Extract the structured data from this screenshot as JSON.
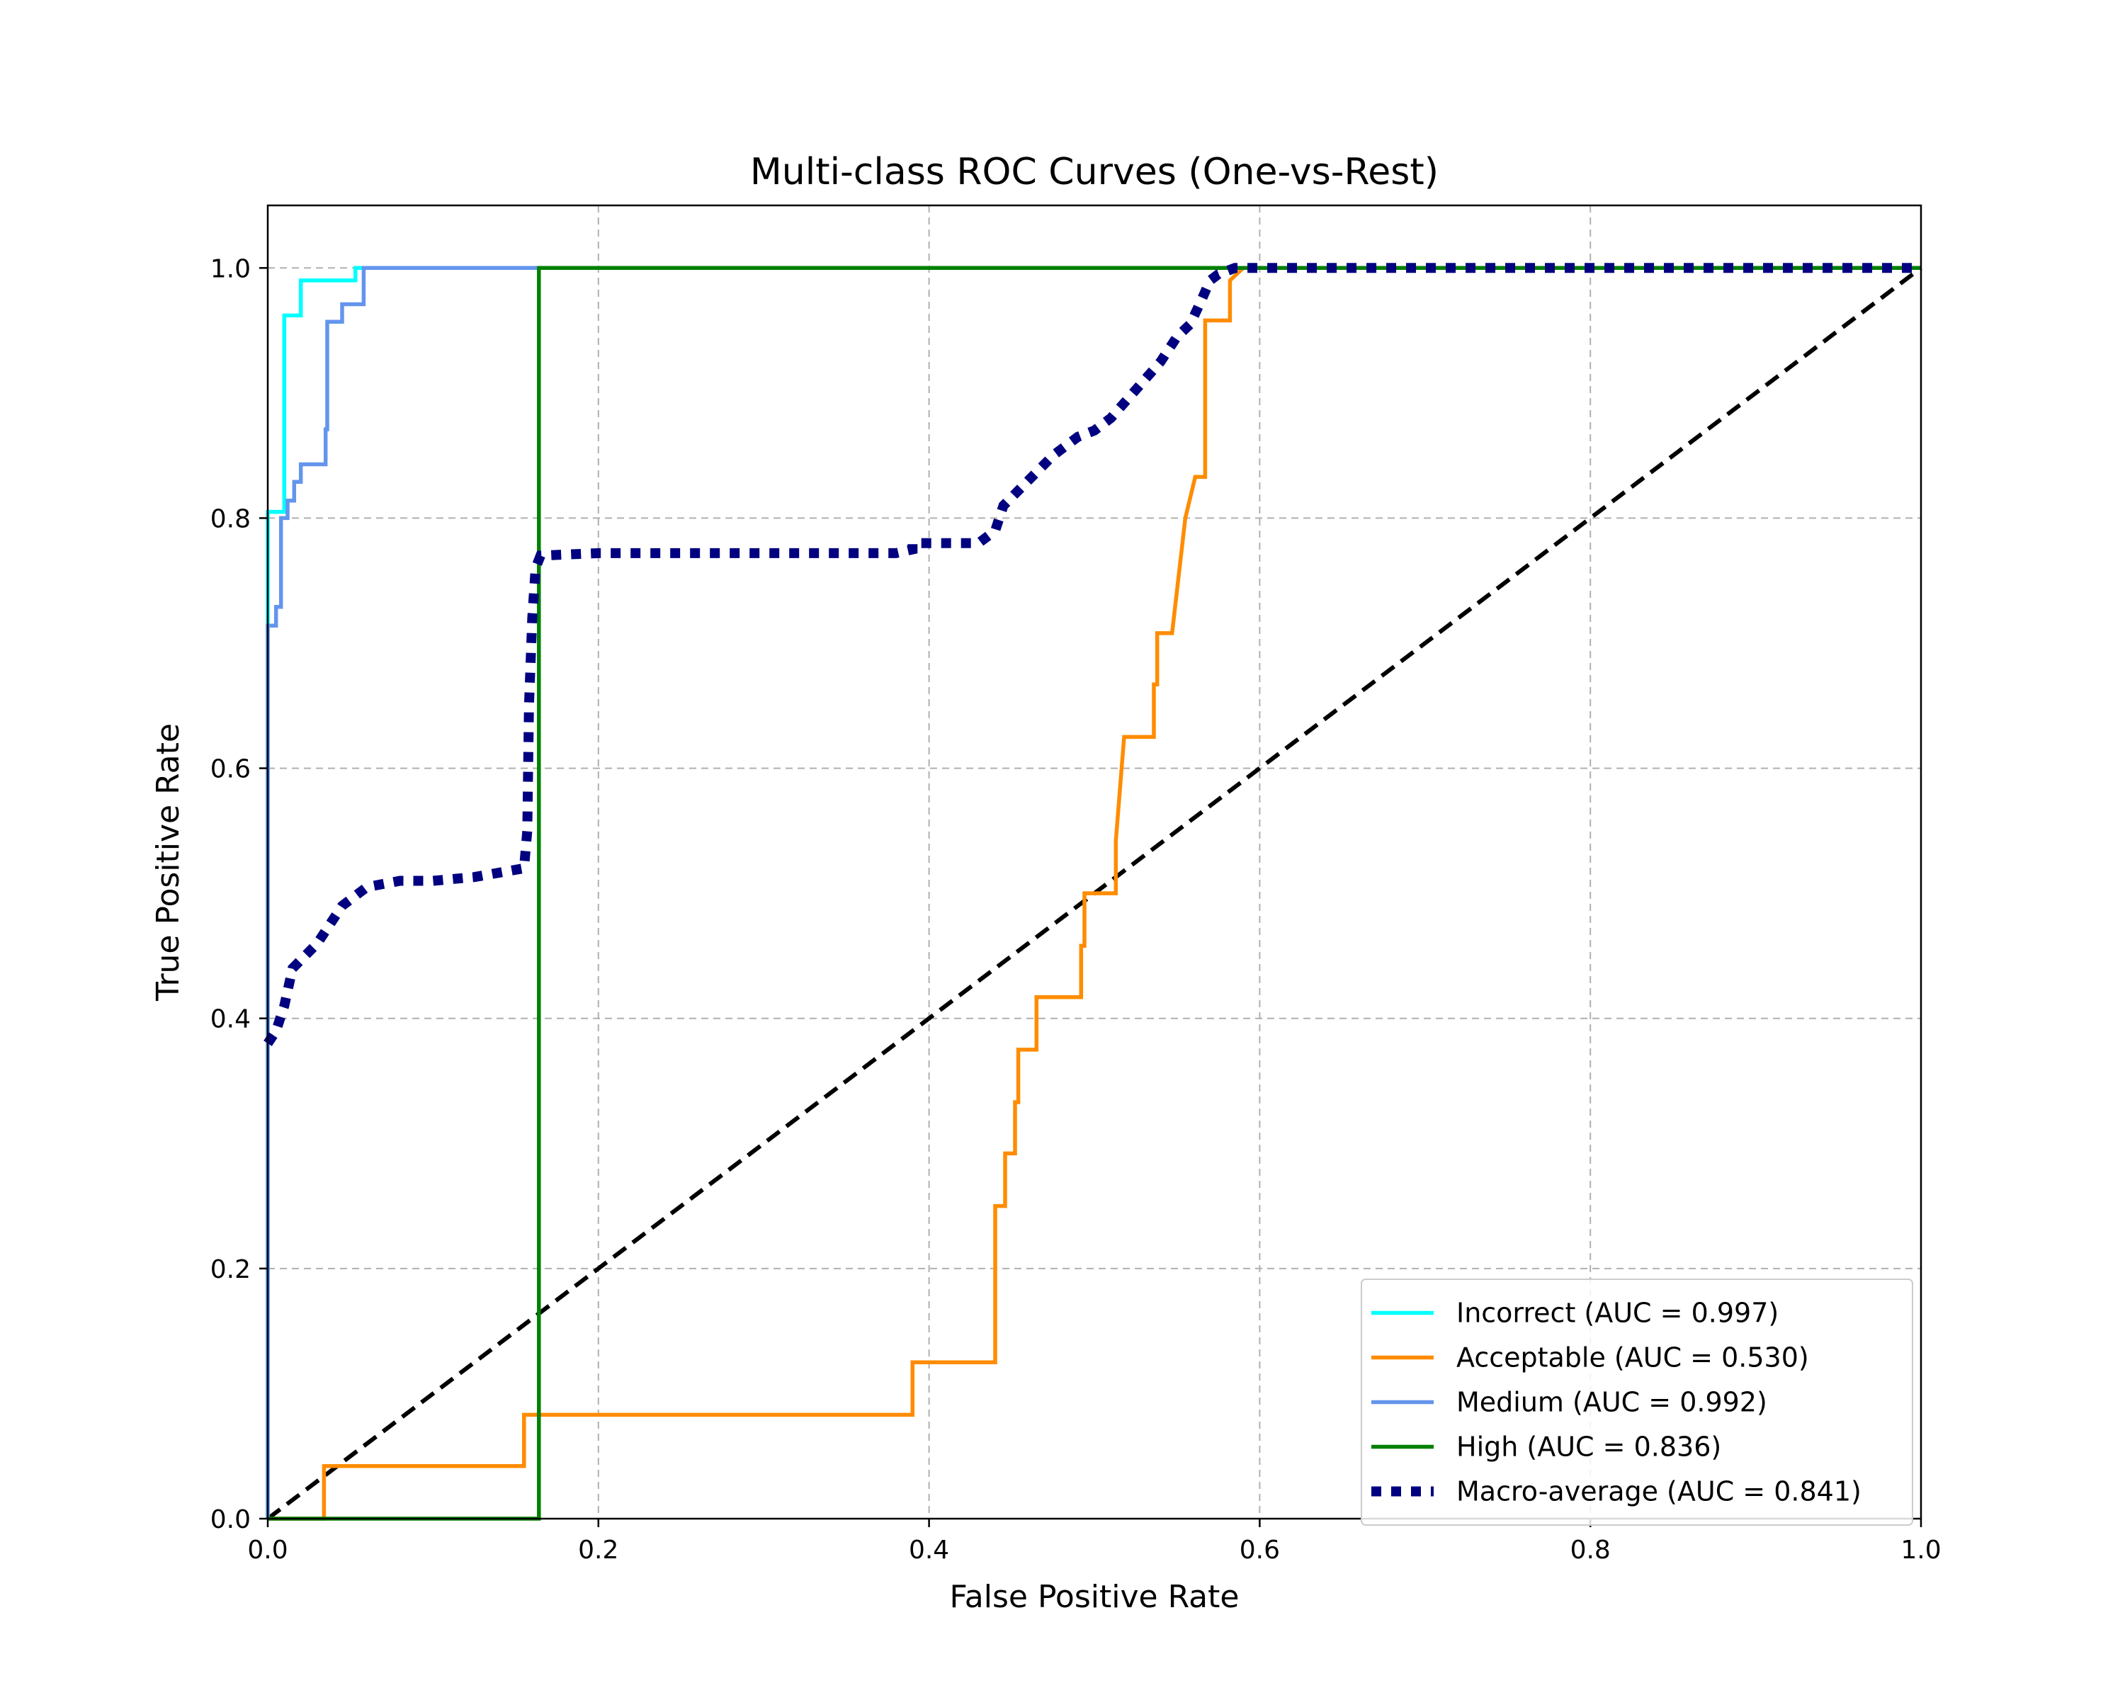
{
  "chart_data": {
    "type": "line",
    "title": "Multi-class ROC Curves (One-vs-Rest)",
    "xlabel": "False Positive Rate",
    "ylabel": "True Positive Rate",
    "xlim": [
      0.0,
      1.0
    ],
    "ylim": [
      0.0,
      1.05
    ],
    "xticks": [
      0.0,
      0.2,
      0.4,
      0.6,
      0.8,
      1.0
    ],
    "yticks": [
      0.0,
      0.2,
      0.4,
      0.6,
      0.8,
      1.0
    ],
    "xtick_labels": [
      "0.0",
      "0.2",
      "0.4",
      "0.6",
      "0.8",
      "1.0"
    ],
    "ytick_labels": [
      "0.0",
      "0.2",
      "0.4",
      "0.6",
      "0.8",
      "1.0"
    ],
    "grid": true,
    "legend_position": "lower-right",
    "series": [
      {
        "name": "Incorrect (AUC = 0.997)",
        "color": "#00ffff",
        "style": "solid",
        "x": [
          0.0,
          0.0,
          0.01,
          0.01,
          0.02,
          0.02,
          0.053,
          0.053,
          1.0
        ],
        "y": [
          0.0,
          0.805,
          0.805,
          0.962,
          0.962,
          0.99,
          0.99,
          1.0,
          1.0
        ]
      },
      {
        "name": "Acceptable (AUC = 0.530)",
        "color": "#ff8c00",
        "style": "solid",
        "x": [
          0.0,
          0.034,
          0.034,
          0.155,
          0.155,
          0.39,
          0.39,
          0.44,
          0.44,
          0.446,
          0.446,
          0.452,
          0.452,
          0.454,
          0.454,
          0.465,
          0.465,
          0.492,
          0.492,
          0.494,
          0.494,
          0.513,
          0.513,
          0.518,
          0.536,
          0.536,
          0.538,
          0.538,
          0.547,
          0.555,
          0.561,
          0.567,
          0.567,
          0.582,
          0.582,
          0.59,
          1.0
        ],
        "y": [
          0.0,
          0.0,
          0.042,
          0.042,
          0.083,
          0.083,
          0.125,
          0.125,
          0.25,
          0.25,
          0.292,
          0.292,
          0.333,
          0.333,
          0.375,
          0.375,
          0.417,
          0.417,
          0.458,
          0.458,
          0.5,
          0.5,
          0.542,
          0.625,
          0.625,
          0.667,
          0.667,
          0.708,
          0.708,
          0.8,
          0.833,
          0.833,
          0.958,
          0.958,
          0.99,
          1.0,
          1.0
        ]
      },
      {
        "name": "Medium (AUC = 0.992)",
        "color": "#6495ed",
        "style": "solid",
        "x": [
          0.0,
          0.0,
          0.005,
          0.005,
          0.008,
          0.008,
          0.012,
          0.012,
          0.016,
          0.016,
          0.02,
          0.02,
          0.035,
          0.035,
          0.036,
          0.036,
          0.04,
          0.04,
          0.045,
          0.045,
          0.058,
          0.058,
          1.0
        ],
        "y": [
          0.0,
          0.714,
          0.714,
          0.729,
          0.729,
          0.8,
          0.8,
          0.814,
          0.814,
          0.829,
          0.829,
          0.843,
          0.843,
          0.871,
          0.871,
          0.957,
          0.957,
          0.957,
          0.957,
          0.971,
          0.971,
          1.0,
          1.0
        ]
      },
      {
        "name": "High (AUC = 0.836)",
        "color": "#008000",
        "style": "solid",
        "x": [
          0.0,
          0.164,
          0.164,
          1.0
        ],
        "y": [
          0.0,
          0.0,
          1.0,
          1.0
        ]
      },
      {
        "name": "Macro-average (AUC = 0.841)",
        "color": "#000080",
        "style": "dotted",
        "x": [
          0.0,
          0.005,
          0.01,
          0.015,
          0.03,
          0.045,
          0.06,
          0.08,
          0.1,
          0.125,
          0.155,
          0.157,
          0.158,
          0.16,
          0.162,
          0.165,
          0.2,
          0.3,
          0.38,
          0.39,
          0.39,
          0.43,
          0.44,
          0.445,
          0.46,
          0.475,
          0.49,
          0.5,
          0.51,
          0.52,
          0.53,
          0.54,
          0.545,
          0.55,
          0.558,
          0.565,
          0.57,
          0.575,
          0.585,
          0.59,
          1.0
        ],
        "y": [
          0.38,
          0.39,
          0.41,
          0.44,
          0.46,
          0.49,
          0.505,
          0.51,
          0.51,
          0.513,
          0.52,
          0.55,
          0.65,
          0.72,
          0.76,
          0.77,
          0.772,
          0.772,
          0.772,
          0.775,
          0.78,
          0.78,
          0.79,
          0.81,
          0.83,
          0.85,
          0.865,
          0.87,
          0.88,
          0.895,
          0.91,
          0.925,
          0.935,
          0.945,
          0.955,
          0.975,
          0.99,
          0.995,
          1.0,
          1.0,
          1.0
        ]
      },
      {
        "name": "",
        "color": "#000000",
        "style": "dashed",
        "x": [
          0.0,
          1.0
        ],
        "y": [
          0.0,
          1.0
        ]
      }
    ]
  }
}
